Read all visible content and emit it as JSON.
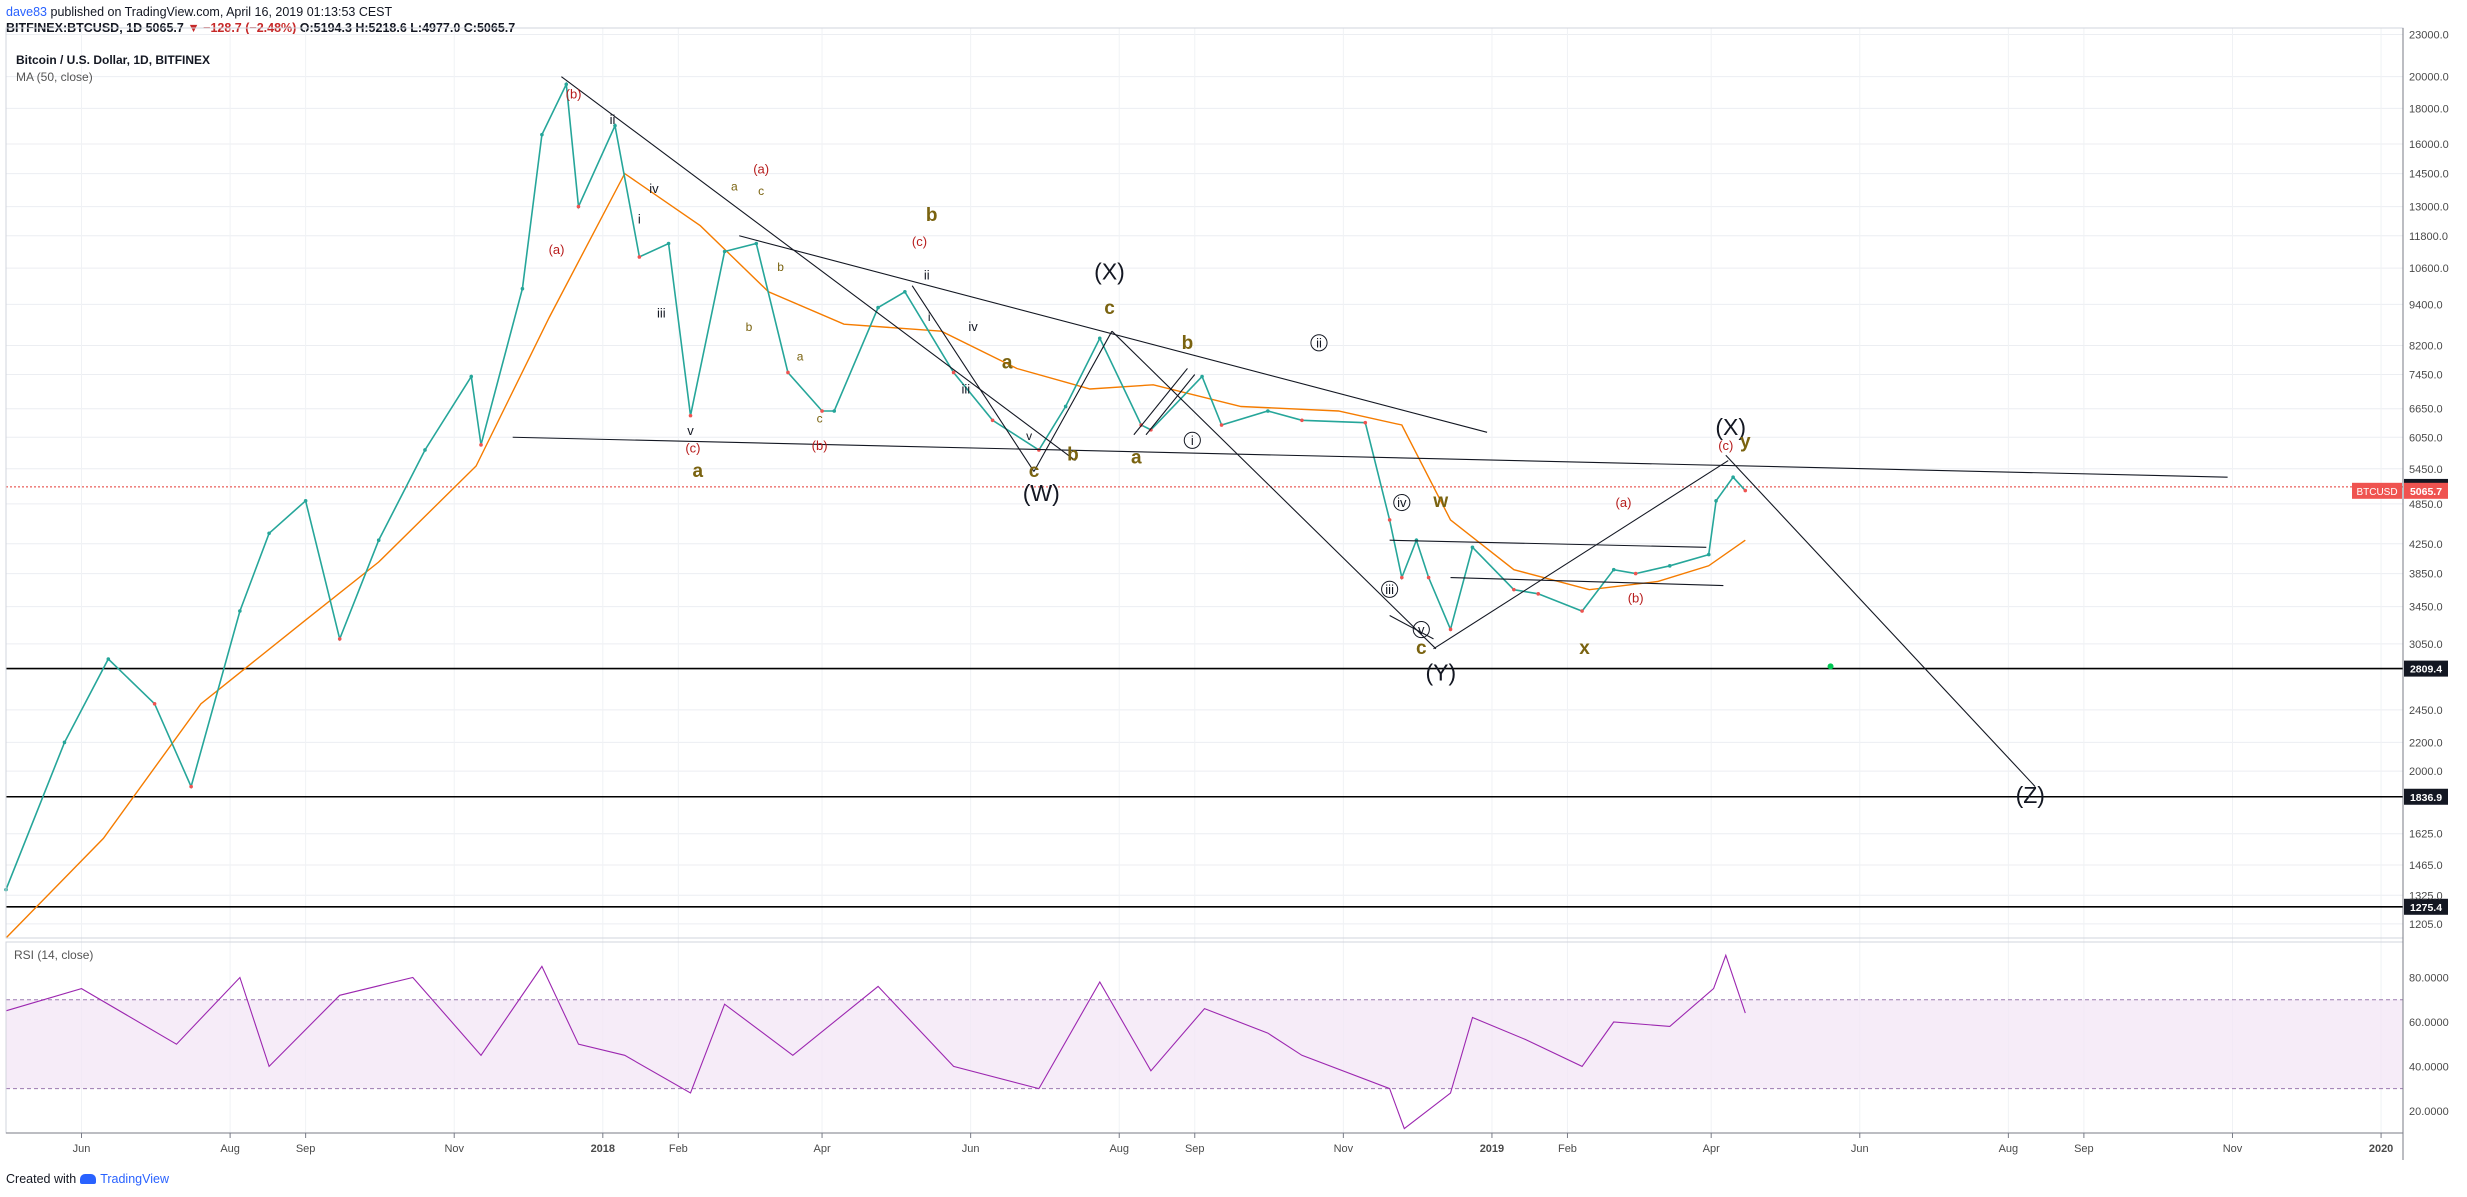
{
  "header": {
    "author": "dave83",
    "published_text": "published on TradingView.com, April 16, 2019 01:13:53 CEST",
    "symbol_line_prefix": "BITFINEX:BTCUSD, 1D",
    "close_value": "5065.7",
    "change": "▼ −128.7 (−2.48%)",
    "ohlc": "O:5194.3 H:5218.6 L:4977.0 C:5065.7"
  },
  "chart_data": {
    "type": "line",
    "title": "Bitcoin / U.S. Dollar, 1D, BITFINEX",
    "study_label": "MA (50, close)",
    "symbol_tag": "BTCUSD",
    "last_price_label": "5065.7",
    "hline_labels": [
      "5131.3",
      "2809.4",
      "1836.9",
      "1275.4"
    ],
    "hlines": [
      5131.3,
      2809.4,
      1836.9,
      1275.4
    ],
    "y_scale": "log",
    "ylim": [
      1150,
      23500
    ],
    "ytick_labels": [
      "23000.0",
      "20000.0",
      "18000.0",
      "16000.0",
      "14500.0",
      "13000.0",
      "11800.0",
      "10600.0",
      "9400.0",
      "8200.0",
      "7450.0",
      "6650.0",
      "6050.0",
      "5450.0",
      "4850.0",
      "4250.0",
      "3850.0",
      "3450.0",
      "3050.0",
      "2450.0",
      "2200.0",
      "2000.0",
      "1625.0",
      "1465.0",
      "1325.0",
      "1205.0"
    ],
    "x_tick_labels": [
      "Jun",
      "Aug",
      "Sep",
      "Nov",
      "2018",
      "Feb",
      "Apr",
      "Jun",
      "Aug",
      "Sep",
      "Nov",
      "2019",
      "Feb",
      "Apr",
      "Jun",
      "Aug",
      "Sep",
      "Nov",
      "2020"
    ],
    "series": [
      {
        "name": "BTCUSD",
        "color": "#26a69a",
        "x": [
          "2017-05-01",
          "2017-05-25",
          "2017-06-12",
          "2017-07-01",
          "2017-07-16",
          "2017-08-05",
          "2017-08-17",
          "2017-09-01",
          "2017-09-15",
          "2017-10-01",
          "2017-10-20",
          "2017-11-08",
          "2017-11-12",
          "2017-11-29",
          "2017-12-07",
          "2017-12-17",
          "2017-12-22",
          "2018-01-06",
          "2018-01-16",
          "2018-01-28",
          "2018-02-06",
          "2018-02-20",
          "2018-03-05",
          "2018-03-18",
          "2018-04-01",
          "2018-04-06",
          "2018-04-24",
          "2018-05-05",
          "2018-05-25",
          "2018-06-10",
          "2018-06-29",
          "2018-07-10",
          "2018-07-24",
          "2018-08-10",
          "2018-08-14",
          "2018-09-04",
          "2018-09-12",
          "2018-10-01",
          "2018-10-15",
          "2018-11-10",
          "2018-11-20",
          "2018-11-25",
          "2018-12-01",
          "2018-12-06",
          "2018-12-15",
          "2018-12-24",
          "2019-01-10",
          "2019-01-20",
          "2019-02-07",
          "2019-02-20",
          "2019-03-01",
          "2019-03-15",
          "2019-03-31",
          "2019-04-03",
          "2019-04-10",
          "2019-04-15"
        ],
        "y": [
          1350,
          2200,
          2900,
          2500,
          1900,
          3400,
          4400,
          4900,
          3100,
          4300,
          5800,
          7400,
          5900,
          9900,
          16500,
          19500,
          13000,
          17000,
          11000,
          11500,
          6500,
          11200,
          11500,
          7500,
          6600,
          6600,
          9300,
          9800,
          7500,
          6400,
          5800,
          6700,
          8400,
          6300,
          6200,
          7400,
          6300,
          6600,
          6400,
          6350,
          4600,
          3800,
          4300,
          3800,
          3200,
          4200,
          3650,
          3600,
          3400,
          3900,
          3850,
          3950,
          4100,
          4900,
          5300,
          5070
        ]
      },
      {
        "name": "MA (50, close)",
        "color": "#f57c00",
        "x": [
          "2017-05-01",
          "2017-06-10",
          "2017-07-20",
          "2017-09-01",
          "2017-10-01",
          "2017-11-10",
          "2017-12-10",
          "2018-01-10",
          "2018-02-10",
          "2018-03-10",
          "2018-04-10",
          "2018-05-20",
          "2018-06-20",
          "2018-07-20",
          "2018-08-15",
          "2018-09-20",
          "2018-10-30",
          "2018-11-25",
          "2018-12-15",
          "2019-01-10",
          "2019-02-10",
          "2019-03-10",
          "2019-03-31",
          "2019-04-15"
        ],
        "y": [
          1150,
          1600,
          2500,
          3300,
          4000,
          5500,
          9000,
          14500,
          12200,
          9800,
          8800,
          8600,
          7600,
          7100,
          7200,
          6700,
          6600,
          6300,
          4600,
          3900,
          3650,
          3750,
          3950,
          4300
        ]
      }
    ],
    "rsi": {
      "label": "RSI (14, close)",
      "color": "#9c27b0",
      "band": [
        30,
        70
      ],
      "ylim": [
        10,
        96
      ],
      "tick_labels": [
        "80.0000",
        "60.0000",
        "40.0000",
        "20.0000"
      ],
      "x": [
        "2017-05-01",
        "2017-06-01",
        "2017-07-10",
        "2017-08-05",
        "2017-08-17",
        "2017-09-15",
        "2017-10-15",
        "2017-11-12",
        "2017-12-07",
        "2017-12-22",
        "2018-01-10",
        "2018-02-06",
        "2018-02-20",
        "2018-03-20",
        "2018-04-24",
        "2018-05-25",
        "2018-06-29",
        "2018-07-24",
        "2018-08-14",
        "2018-09-05",
        "2018-10-01",
        "2018-10-15",
        "2018-11-20",
        "2018-11-26",
        "2018-12-15",
        "2018-12-24",
        "2019-01-15",
        "2019-02-07",
        "2019-02-20",
        "2019-03-15",
        "2019-04-02",
        "2019-04-07",
        "2019-04-15"
      ],
      "values": [
        65,
        75,
        50,
        80,
        40,
        72,
        80,
        45,
        85,
        50,
        45,
        28,
        68,
        45,
        76,
        40,
        30,
        78,
        38,
        66,
        55,
        45,
        30,
        12,
        28,
        62,
        52,
        40,
        60,
        58,
        75,
        90,
        64
      ]
    },
    "annotations": [
      {
        "text": "(b)",
        "date": "2017-12-20",
        "price": 18600,
        "color": "#b71c1c",
        "size": 13
      },
      {
        "text": "ii",
        "date": "2018-01-05",
        "price": 17100,
        "color": "#131722",
        "size": 13
      },
      {
        "text": "(a)",
        "date": "2017-12-13",
        "price": 11100,
        "color": "#b71c1c",
        "size": 13
      },
      {
        "text": "i",
        "date": "2018-01-16",
        "price": 12300,
        "color": "#131722",
        "size": 13
      },
      {
        "text": "iv",
        "date": "2018-01-22",
        "price": 13600,
        "color": "#131722",
        "size": 13
      },
      {
        "text": "iii",
        "date": "2018-01-25",
        "price": 9000,
        "color": "#131722",
        "size": 13
      },
      {
        "text": "v",
        "date": "2018-02-06",
        "price": 6100,
        "color": "#131722",
        "size": 13
      },
      {
        "text": "(c)",
        "date": "2018-02-07",
        "price": 5750,
        "color": "#b71c1c",
        "size": 13
      },
      {
        "text": "a",
        "date": "2018-02-09",
        "price": 5300,
        "color": "#7a6310",
        "size": 19
      },
      {
        "text": "a",
        "date": "2018-02-24",
        "price": 13700,
        "color": "#7a6310",
        "size": 12
      },
      {
        "text": "(a)",
        "date": "2018-03-07",
        "price": 14500,
        "color": "#b71c1c",
        "size": 13
      },
      {
        "text": "c",
        "date": "2018-03-07",
        "price": 13500,
        "color": "#7a6310",
        "size": 12
      },
      {
        "text": "b",
        "date": "2018-03-02",
        "price": 8600,
        "color": "#7a6310",
        "size": 12
      },
      {
        "text": "b",
        "date": "2018-03-15",
        "price": 10500,
        "color": "#7a6310",
        "size": 12
      },
      {
        "text": "a",
        "date": "2018-03-23",
        "price": 7800,
        "color": "#7a6310",
        "size": 12
      },
      {
        "text": "c",
        "date": "2018-03-31",
        "price": 6350,
        "color": "#7a6310",
        "size": 12
      },
      {
        "text": "(b)",
        "date": "2018-03-31",
        "price": 5800,
        "color": "#b71c1c",
        "size": 13
      },
      {
        "text": "b",
        "date": "2018-05-16",
        "price": 12400,
        "color": "#7a6310",
        "size": 19
      },
      {
        "text": "(c)",
        "date": "2018-05-11",
        "price": 11400,
        "color": "#b71c1c",
        "size": 13
      },
      {
        "text": "ii",
        "date": "2018-05-14",
        "price": 10200,
        "color": "#131722",
        "size": 13
      },
      {
        "text": "i",
        "date": "2018-05-15",
        "price": 8900,
        "color": "#131722",
        "size": 12
      },
      {
        "text": "iv",
        "date": "2018-06-02",
        "price": 8600,
        "color": "#131722",
        "size": 13
      },
      {
        "text": "iii",
        "date": "2018-05-30",
        "price": 7000,
        "color": "#131722",
        "size": 13
      },
      {
        "text": "a",
        "date": "2018-06-16",
        "price": 7600,
        "color": "#7a6310",
        "size": 19
      },
      {
        "text": "v",
        "date": "2018-06-25",
        "price": 6000,
        "color": "#131722",
        "size": 12
      },
      {
        "text": "c",
        "date": "2018-06-27",
        "price": 5300,
        "color": "#7a6310",
        "size": 19
      },
      {
        "text": "(W)",
        "date": "2018-06-30",
        "price": 4900,
        "color": "#131722",
        "size": 23
      },
      {
        "text": "b",
        "date": "2018-07-13",
        "price": 5600,
        "color": "#7a6310",
        "size": 19
      },
      {
        "text": "(X)",
        "date": "2018-07-28",
        "price": 10200,
        "color": "#131722",
        "size": 23
      },
      {
        "text": "c",
        "date": "2018-07-28",
        "price": 9100,
        "color": "#7a6310",
        "size": 19
      },
      {
        "text": "a",
        "date": "2018-08-08",
        "price": 5550,
        "color": "#7a6310",
        "size": 19
      },
      {
        "text": "b",
        "date": "2018-08-29",
        "price": 8100,
        "color": "#7a6310",
        "size": 19
      },
      {
        "text": "ii",
        "date": "2018-10-22",
        "price": 8150,
        "color": "#131722",
        "size": 13,
        "circle": true
      },
      {
        "text": "i",
        "date": "2018-08-31",
        "price": 5900,
        "color": "#131722",
        "size": 13,
        "circle": true
      },
      {
        "text": "iv",
        "date": "2018-11-25",
        "price": 4800,
        "color": "#131722",
        "size": 13,
        "circle": true
      },
      {
        "text": "w",
        "date": "2018-12-11",
        "price": 4800,
        "color": "#7a6310",
        "size": 19
      },
      {
        "text": "iii",
        "date": "2018-11-20",
        "price": 3600,
        "color": "#131722",
        "size": 13,
        "circle": true
      },
      {
        "text": "v",
        "date": "2018-12-03",
        "price": 3150,
        "color": "#131722",
        "size": 13,
        "circle": true
      },
      {
        "text": "c",
        "date": "2018-12-03",
        "price": 2950,
        "color": "#7a6310",
        "size": 19
      },
      {
        "text": "(Y)",
        "date": "2018-12-11",
        "price": 2700,
        "color": "#131722",
        "size": 23
      },
      {
        "text": "x",
        "date": "2019-02-08",
        "price": 2950,
        "color": "#7a6310",
        "size": 19
      },
      {
        "text": "(a)",
        "date": "2019-02-24",
        "price": 4800,
        "color": "#b71c1c",
        "size": 13
      },
      {
        "text": "(b)",
        "date": "2019-03-01",
        "price": 3500,
        "color": "#b71c1c",
        "size": 13
      },
      {
        "text": "(X)",
        "date": "2019-04-09",
        "price": 6100,
        "color": "#131722",
        "size": 23
      },
      {
        "text": "(c)",
        "date": "2019-04-07",
        "price": 5800,
        "color": "#b71c1c",
        "size": 13
      },
      {
        "text": "y",
        "date": "2019-04-15",
        "price": 5850,
        "color": "#7a6310",
        "size": 19
      },
      {
        "text": "(Z)",
        "date": "2019-08-10",
        "price": 1800,
        "color": "#131722",
        "size": 23
      }
    ],
    "trendlines": [
      [
        [
          "2017-12-15",
          20000
        ],
        [
          "2018-07-14",
          5600
        ]
      ],
      [
        [
          "2018-02-26",
          11800
        ],
        [
          "2018-12-30",
          6150
        ]
      ],
      [
        [
          "2018-05-08",
          10000
        ],
        [
          "2018-06-27",
          5400
        ]
      ],
      [
        [
          "2017-11-25",
          6050
        ],
        [
          "2019-10-30",
          5300
        ]
      ],
      [
        [
          "2018-06-27",
          5400
        ],
        [
          "2018-07-29",
          8600
        ]
      ],
      [
        [
          "2018-07-29",
          8600
        ],
        [
          "2018-12-09",
          3000
        ]
      ],
      [
        [
          "2018-08-12",
          6100
        ],
        [
          "2018-09-01",
          7450
        ]
      ],
      [
        [
          "2018-08-07",
          6100
        ],
        [
          "2018-08-29",
          7600
        ]
      ],
      [
        [
          "2018-11-20",
          4300
        ],
        [
          "2019-03-30",
          4200
        ]
      ],
      [
        [
          "2018-12-08",
          3000
        ],
        [
          "2019-04-08",
          5600
        ]
      ],
      [
        [
          "2018-12-15",
          3800
        ],
        [
          "2019-04-06",
          3700
        ]
      ],
      [
        [
          "2019-04-07",
          5700
        ],
        [
          "2019-08-12",
          1900
        ]
      ],
      [
        [
          "2018-11-20",
          3350
        ],
        [
          "2018-12-08",
          3100
        ]
      ]
    ]
  },
  "footer": {
    "created_with": "Created with",
    "brand": "TradingView"
  }
}
